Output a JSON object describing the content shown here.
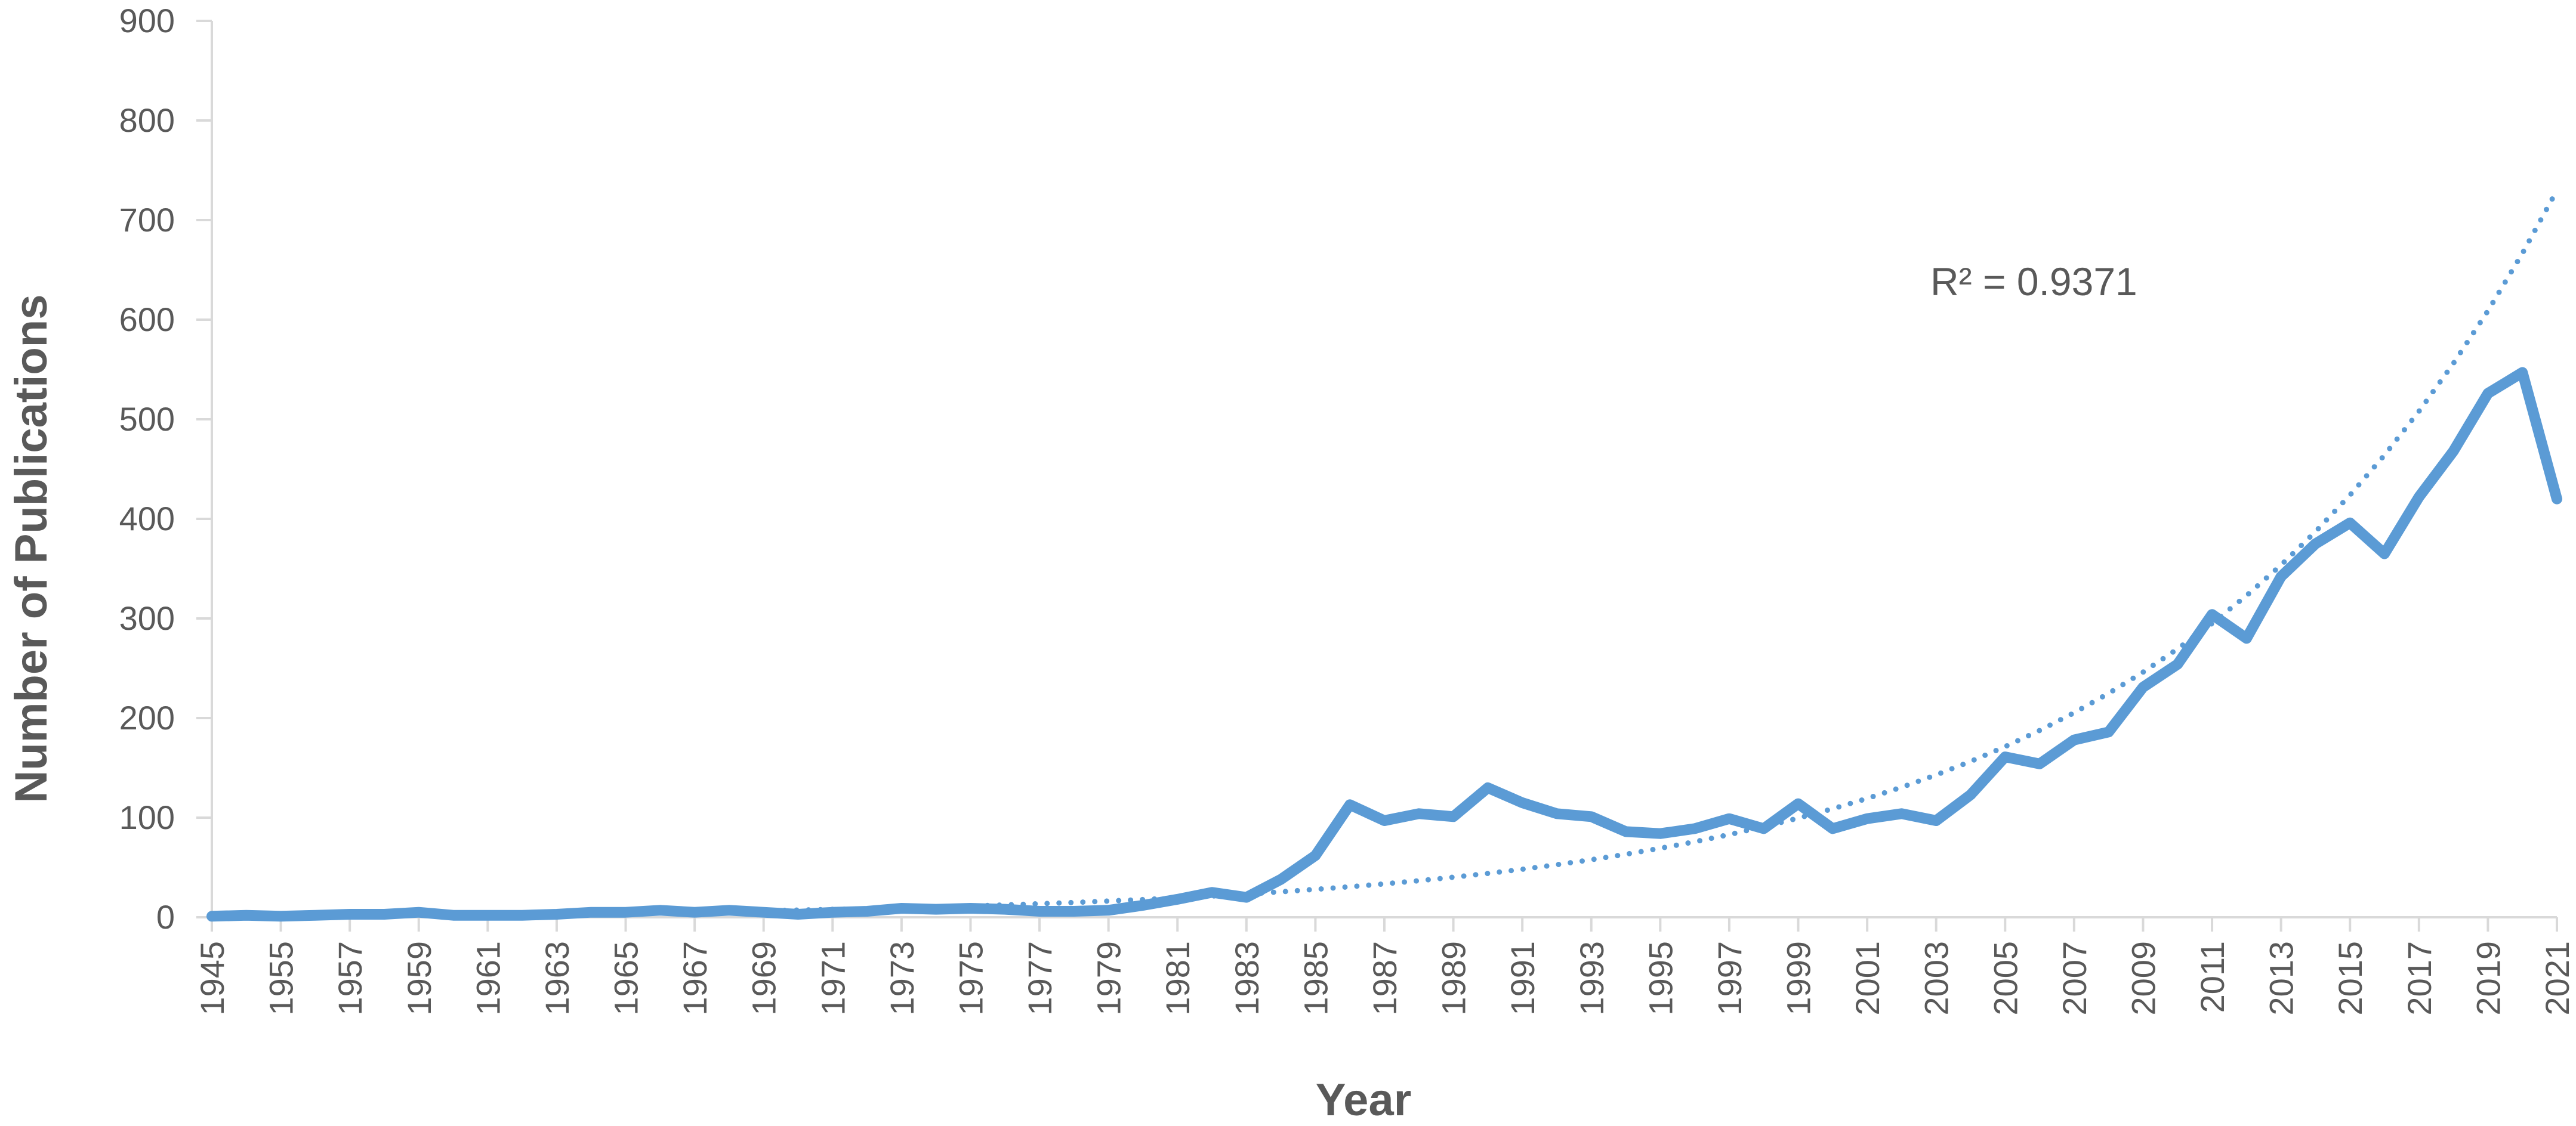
{
  "chart_data": {
    "type": "line",
    "title": "",
    "xlabel": "Year",
    "ylabel": "Number of Publications",
    "ylim": [
      0,
      900
    ],
    "yticks": [
      0,
      100,
      200,
      300,
      400,
      500,
      600,
      700,
      800,
      900
    ],
    "xtick_labels": [
      "1945",
      "1955",
      "1957",
      "1959",
      "1961",
      "1963",
      "1965",
      "1967",
      "1969",
      "1971",
      "1973",
      "1975",
      "1977",
      "1979",
      "1981",
      "1983",
      "1985",
      "1987",
      "1989",
      "1991",
      "1993",
      "1995",
      "1997",
      "1999",
      "2001",
      "2003",
      "2005",
      "2007",
      "2009",
      "2011",
      "2013",
      "2015",
      "2017",
      "2019",
      "2021"
    ],
    "categories": [
      "1945",
      "1954",
      "1955",
      "1956",
      "1957",
      "1958",
      "1959",
      "1960",
      "1961",
      "1962",
      "1963",
      "1964",
      "1965",
      "1966",
      "1967",
      "1968",
      "1969",
      "1970",
      "1971",
      "1972",
      "1973",
      "1974",
      "1975",
      "1976",
      "1977",
      "1978",
      "1979",
      "1980",
      "1981",
      "1982",
      "1983",
      "1984",
      "1985",
      "1986",
      "1987",
      "1988",
      "1989",
      "1990",
      "1991",
      "1992",
      "1993",
      "1994",
      "1995",
      "1996",
      "1997",
      "1998",
      "1999",
      "2000",
      "2001",
      "2002",
      "2003",
      "2004",
      "2005",
      "2006",
      "2007",
      "2008",
      "2009",
      "2010",
      "2011",
      "2012",
      "2013",
      "2014",
      "2015",
      "2016",
      "2017",
      "2018",
      "2019",
      "2020",
      "2021"
    ],
    "series": [
      {
        "values": [
          1,
          2,
          1,
          2,
          3,
          3,
          5,
          2,
          2,
          2,
          3,
          5,
          5,
          7,
          5,
          7,
          5,
          3,
          5,
          6,
          9,
          8,
          9,
          8,
          6,
          6,
          7,
          12,
          18,
          25,
          20,
          38,
          62,
          113,
          97,
          104,
          101,
          130,
          115,
          104,
          101,
          86,
          84,
          89,
          99,
          89,
          114,
          89,
          99,
          104,
          97,
          123,
          161,
          154,
          178,
          186,
          231,
          254,
          304,
          280,
          342,
          375,
          396,
          365,
          422,
          468,
          526,
          547,
          420
        ],
        "color": "#5b9bd5"
      }
    ],
    "trendline": {
      "type": "exponential",
      "style": "dotted",
      "color": "#5b9bd5",
      "label": "R² = 0.9371"
    },
    "grid": false,
    "legend": "none"
  }
}
